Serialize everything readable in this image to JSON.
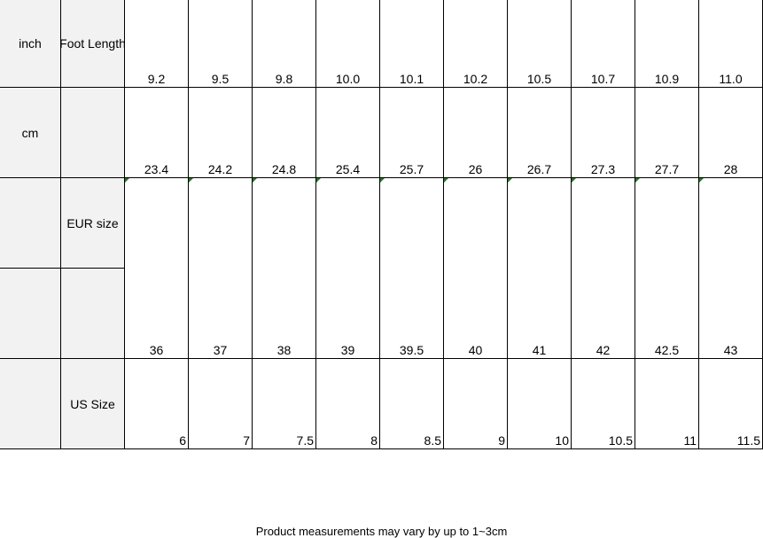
{
  "rows": {
    "inch": {
      "label": "inch",
      "header": "Foot Length",
      "values": [
        "9.2",
        "9.5",
        "9.8",
        "10.0",
        "10.1",
        "10.2",
        "10.5",
        "10.7",
        "10.9",
        "11.0"
      ]
    },
    "cm": {
      "label": "cm",
      "header": "",
      "values": [
        "23.4",
        "24.2",
        "24.8",
        "25.4",
        "25.7",
        "26",
        "26.7",
        "27.3",
        "27.7",
        "28"
      ]
    },
    "eur": {
      "label": "",
      "header": "EUR size",
      "values": [
        "36",
        "37",
        "38",
        "39",
        "39.5",
        "40",
        "41",
        "42",
        "42.5",
        "43"
      ]
    },
    "us": {
      "label": "",
      "header": "US Size",
      "values": [
        "6",
        "7",
        "7.5",
        "8",
        "8.5",
        "9",
        "10",
        "10.5",
        "11",
        "11.5"
      ]
    }
  },
  "footer": "Product measurements may vary by up to 1~3cm",
  "colors": {
    "header_bg": "#f2f2f2",
    "marker": "#1e7a1e"
  }
}
